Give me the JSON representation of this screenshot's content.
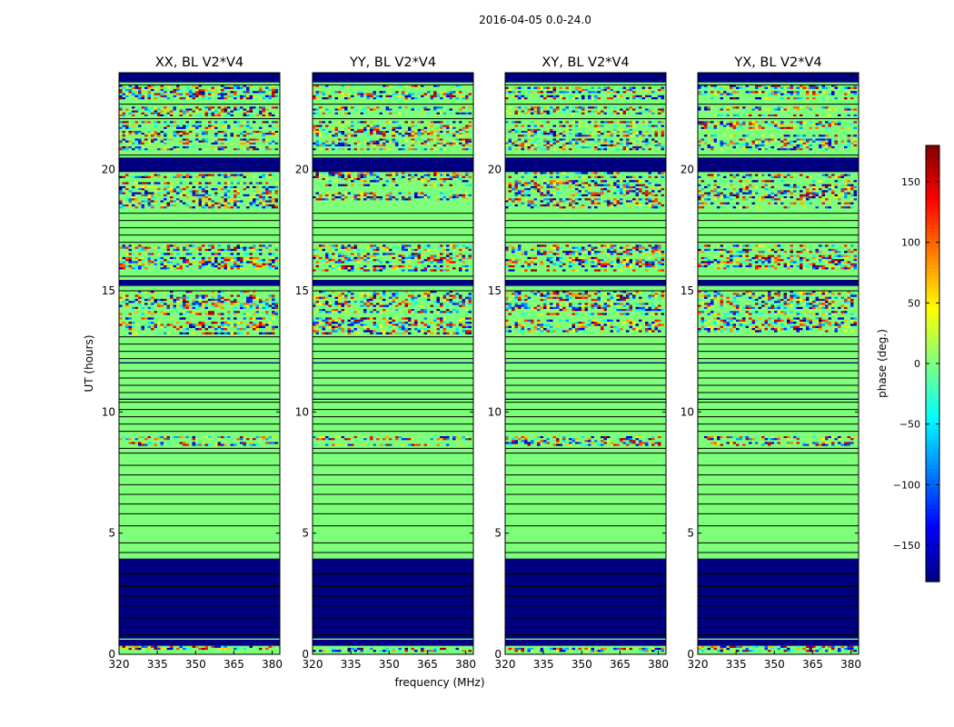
{
  "figure": {
    "suptitle": "2016-04-05 0.0-24.0",
    "ylabel": "UT (hours)",
    "xlabel": "frequency (MHz)"
  },
  "colorbar": {
    "label": "phase (deg.)",
    "range": [
      -180,
      180
    ],
    "ticks": [
      150,
      100,
      50,
      0,
      -50,
      -100,
      -150
    ],
    "tick_labels": [
      "150",
      "100",
      "50",
      "0",
      "−50",
      "−100",
      "−150"
    ],
    "colormap": "jet"
  },
  "chart_data": {
    "type": "heatmap",
    "xlim": [
      320,
      383
    ],
    "ylim": [
      0,
      24
    ],
    "xticks": [
      320,
      335,
      350,
      365,
      380
    ],
    "yticks": [
      0,
      5,
      10,
      15,
      20
    ],
    "colors": {
      "zero_phase": "#7dff7a",
      "flagged": "#000080",
      "line": "#000000"
    },
    "panels": [
      {
        "title": "XX, BL V2*V4",
        "noisy_bands": [
          [
            0.1,
            0.35
          ],
          [
            8.6,
            9.0
          ],
          [
            13.2,
            13.9
          ],
          [
            14.0,
            15.0
          ],
          [
            15.8,
            16.9
          ],
          [
            18.4,
            19.9
          ],
          [
            20.8,
            22.0
          ],
          [
            22.2,
            22.6
          ],
          [
            22.9,
            23.5
          ]
        ]
      },
      {
        "title": "YY, BL V2*V4",
        "noisy_bands": [
          [
            0.1,
            0.35
          ],
          [
            8.6,
            9.0
          ],
          [
            13.2,
            13.9
          ],
          [
            14.0,
            15.0
          ],
          [
            15.8,
            16.9
          ],
          [
            18.4,
            19.9
          ],
          [
            20.8,
            22.0
          ],
          [
            22.2,
            22.6
          ],
          [
            22.9,
            23.5
          ]
        ]
      },
      {
        "title": "XY, BL V2*V4",
        "noisy_bands": [
          [
            0.1,
            0.35
          ],
          [
            8.6,
            9.0
          ],
          [
            13.2,
            13.9
          ],
          [
            14.0,
            15.0
          ],
          [
            15.8,
            16.9
          ],
          [
            18.4,
            19.9
          ],
          [
            20.8,
            22.0
          ],
          [
            22.2,
            22.6
          ],
          [
            22.9,
            23.5
          ]
        ]
      },
      {
        "title": "YX, BL V2*V4",
        "noisy_bands": [
          [
            0.1,
            0.35
          ],
          [
            8.6,
            9.0
          ],
          [
            13.2,
            13.9
          ],
          [
            14.0,
            15.0
          ],
          [
            15.8,
            16.9
          ],
          [
            18.4,
            19.9
          ],
          [
            20.8,
            22.0
          ],
          [
            22.2,
            22.6
          ],
          [
            22.9,
            23.5
          ]
        ]
      }
    ],
    "flagged_bands": [
      [
        0.35,
        0.6
      ],
      [
        0.65,
        3.95
      ],
      [
        15.2,
        15.45
      ],
      [
        19.9,
        20.5
      ],
      [
        23.6,
        24.0
      ],
      [
        10.5,
        10.55
      ],
      [
        12.0,
        12.05
      ]
    ],
    "hlines_ut": [
      0.8,
      1.1,
      1.5,
      2.0,
      2.4,
      2.8,
      3.3,
      4.2,
      4.6,
      5.3,
      5.8,
      6.2,
      6.6,
      7.0,
      7.4,
      7.8,
      8.3,
      8.5,
      9.2,
      9.5,
      9.8,
      10.1,
      10.4,
      10.8,
      11.1,
      11.4,
      11.7,
      12.2,
      12.5,
      12.8,
      13.1,
      15.0,
      15.6,
      17.0,
      17.3,
      17.6,
      17.9,
      18.2,
      20.0,
      20.6,
      22.1,
      22.7,
      23.5
    ]
  }
}
